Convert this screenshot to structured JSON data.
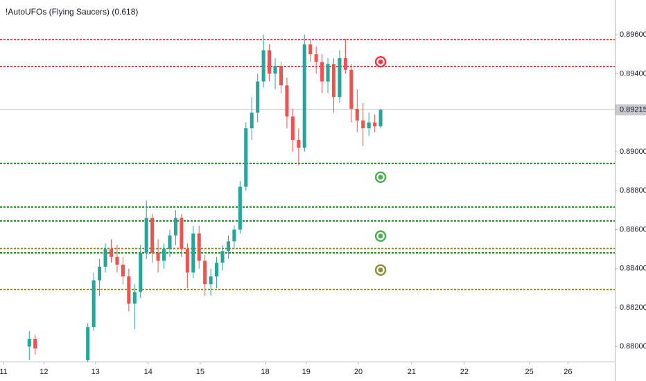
{
  "chart_data": {
    "type": "candlestick",
    "title": "!AutoUFOs (Flying Saucers) (0.618)",
    "x": [
      0,
      1,
      10,
      11,
      12,
      13,
      14,
      15,
      16,
      17,
      18,
      19,
      20,
      21,
      22,
      23,
      24,
      25,
      26,
      27,
      28,
      29,
      30,
      31,
      32,
      33,
      34,
      35,
      36,
      37,
      38,
      39,
      40,
      41,
      42,
      43,
      44,
      45,
      46,
      47,
      48,
      49,
      50,
      51,
      52,
      53,
      54,
      55,
      56,
      57,
      58,
      59,
      60
    ],
    "open": [
      0.88,
      0.8804,
      0.8793,
      0.881,
      0.8834,
      0.8841,
      0.885,
      0.8846,
      0.8842,
      0.8836,
      0.8822,
      0.8828,
      0.8848,
      0.8866,
      0.8848,
      0.8844,
      0.885,
      0.8857,
      0.8866,
      0.885,
      0.8838,
      0.8858,
      0.8844,
      0.8832,
      0.8836,
      0.8843,
      0.8849,
      0.8854,
      0.886,
      0.8882,
      0.8912,
      0.892,
      0.8936,
      0.8952,
      0.894,
      0.8944,
      0.8934,
      0.8918,
      0.8906,
      0.8902,
      0.8955,
      0.895,
      0.8946,
      0.8936,
      0.8945,
      0.8928,
      0.8948,
      0.8942,
      0.8922,
      0.8916,
      0.8912,
      0.8915,
      0.8913
    ],
    "high": [
      0.8808,
      0.8806,
      0.8812,
      0.8838,
      0.8845,
      0.8853,
      0.8855,
      0.8852,
      0.8846,
      0.884,
      0.8832,
      0.8852,
      0.8875,
      0.8868,
      0.8855,
      0.8853,
      0.886,
      0.887,
      0.8868,
      0.8853,
      0.8862,
      0.8862,
      0.8847,
      0.884,
      0.8846,
      0.8852,
      0.8857,
      0.8862,
      0.8885,
      0.8915,
      0.8928,
      0.894,
      0.896,
      0.8955,
      0.8948,
      0.8946,
      0.8938,
      0.8922,
      0.8912,
      0.896,
      0.8958,
      0.8954,
      0.895,
      0.8948,
      0.8948,
      0.8952,
      0.8958,
      0.8945,
      0.8932,
      0.8925,
      0.892,
      0.8919,
      0.8922
    ],
    "low": [
      0.8793,
      0.8796,
      0.8792,
      0.8808,
      0.8826,
      0.8838,
      0.8843,
      0.8838,
      0.8832,
      0.8818,
      0.8809,
      0.8825,
      0.8845,
      0.8843,
      0.8838,
      0.884,
      0.8846,
      0.8852,
      0.8846,
      0.883,
      0.8835,
      0.884,
      0.8826,
      0.8826,
      0.883,
      0.8839,
      0.8845,
      0.885,
      0.8858,
      0.888,
      0.8906,
      0.8915,
      0.8933,
      0.8936,
      0.8932,
      0.893,
      0.8912,
      0.89,
      0.8893,
      0.89,
      0.8946,
      0.894,
      0.893,
      0.893,
      0.892,
      0.8925,
      0.894,
      0.8915,
      0.891,
      0.8903,
      0.8908,
      0.891,
      0.8912
    ],
    "close": [
      0.8804,
      0.8799,
      0.881,
      0.8834,
      0.8841,
      0.885,
      0.8846,
      0.8842,
      0.8836,
      0.8822,
      0.8828,
      0.8848,
      0.8866,
      0.8848,
      0.8844,
      0.885,
      0.8857,
      0.8866,
      0.885,
      0.8838,
      0.8858,
      0.8844,
      0.8832,
      0.8836,
      0.8843,
      0.8849,
      0.8854,
      0.886,
      0.8882,
      0.8912,
      0.892,
      0.8936,
      0.8952,
      0.894,
      0.8944,
      0.8934,
      0.8918,
      0.8906,
      0.8902,
      0.8955,
      0.895,
      0.8946,
      0.8936,
      0.8945,
      0.8928,
      0.8948,
      0.8942,
      0.8922,
      0.8916,
      0.8912,
      0.8915,
      0.8913,
      0.89215
    ],
    "up_color": "#26a69a",
    "down_color": "#ef5350",
    "xlim": [
      -5,
      100
    ],
    "ylim": [
      0.87923,
      0.89778
    ],
    "xticks": [
      {
        "value": -4.4,
        "label": "11"
      },
      {
        "value": 2.5,
        "label": "12"
      },
      {
        "value": 11.3,
        "label": "13"
      },
      {
        "value": 20.3,
        "label": "14"
      },
      {
        "value": 29.2,
        "label": "15"
      },
      {
        "value": 40.3,
        "label": "18"
      },
      {
        "value": 47.3,
        "label": "19"
      },
      {
        "value": 56.2,
        "label": "20"
      },
      {
        "value": 65.3,
        "label": "21"
      },
      {
        "value": 74.3,
        "label": "22"
      },
      {
        "value": 85.4,
        "label": "25"
      },
      {
        "value": 92.0,
        "label": "26"
      }
    ],
    "yticks": [
      {
        "value": 0.88,
        "label": "0.88000"
      },
      {
        "value": 0.882,
        "label": "0.88200"
      },
      {
        "value": 0.884,
        "label": "0.88400"
      },
      {
        "value": 0.886,
        "label": "0.88600"
      },
      {
        "value": 0.888,
        "label": "0.88800"
      },
      {
        "value": 0.89,
        "label": "0.89000"
      },
      {
        "value": 0.894,
        "label": "0.89400"
      },
      {
        "value": 0.896,
        "label": "0.89600"
      }
    ],
    "current_price": {
      "value": 0.89215,
      "label": "0.89215"
    },
    "levels": [
      {
        "value": 0.89575,
        "color": "#f23645"
      },
      {
        "value": 0.89437,
        "color": "#f23645"
      },
      {
        "value": 0.8894,
        "color": "#1b8a1b"
      },
      {
        "value": 0.88716,
        "color": "#1b8a1b"
      },
      {
        "value": 0.88645,
        "color": "#1b8a1b"
      },
      {
        "value": 0.88503,
        "color": "#8a8a12"
      },
      {
        "value": 0.88481,
        "color": "#1b8a1b"
      },
      {
        "value": 0.88293,
        "color": "#8a8a12"
      }
    ],
    "markers": [
      {
        "x": 60,
        "value": 0.89461,
        "color": "#f23645"
      },
      {
        "x": 60,
        "value": 0.88869,
        "color": "#4caf50"
      },
      {
        "x": 60,
        "value": 0.88567,
        "color": "#4caf50"
      },
      {
        "x": 60,
        "value": 0.88393,
        "color": "#8f8f3a"
      }
    ]
  }
}
